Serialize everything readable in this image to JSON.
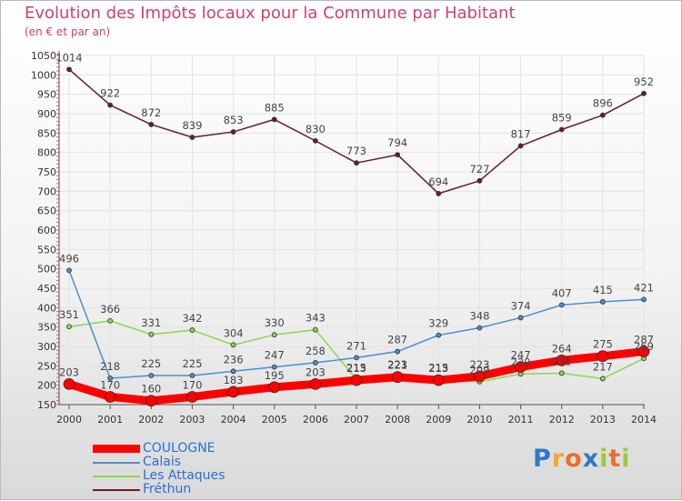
{
  "chart_data": {
    "type": "line",
    "title": "Evolution des Impôts locaux pour la Commune par Habitant",
    "subtitle": "(en € et par an)",
    "x": [
      "2000",
      "2001",
      "2002",
      "2003",
      "2004",
      "2005",
      "2006",
      "2007",
      "2008",
      "2009",
      "2010",
      "2011",
      "2012",
      "2013",
      "2014"
    ],
    "ylim": [
      150,
      1050
    ],
    "yticks": [
      150,
      200,
      250,
      300,
      350,
      400,
      450,
      500,
      550,
      600,
      650,
      700,
      750,
      800,
      850,
      900,
      950,
      1000,
      1050
    ],
    "grid": true,
    "legend_position": "bottom-left",
    "series": [
      {
        "name": "Fréthun",
        "color": "#6b1c24",
        "width": 1.5,
        "marker": 5,
        "values": [
          1014,
          922,
          872,
          839,
          853,
          885,
          830,
          773,
          794,
          694,
          727,
          817,
          859,
          896,
          952
        ]
      },
      {
        "name": "Les Attaques",
        "color": "#8ed64d",
        "width": 1.5,
        "marker": 5,
        "values": [
          351,
          366,
          331,
          342,
          304,
          330,
          343,
          215,
          223,
          215,
          209,
          229,
          231,
          217,
          269
        ]
      },
      {
        "name": "Calais",
        "color": "#4a8fcf",
        "width": 1.5,
        "marker": 5,
        "values": [
          496,
          218,
          225,
          225,
          236,
          247,
          258,
          271,
          287,
          329,
          348,
          374,
          407,
          415,
          421
        ]
      },
      {
        "name": "COULOGNE",
        "color": "#ff0000",
        "width": 9,
        "marker": 12,
        "values": [
          203,
          170,
          160,
          170,
          183,
          195,
          203,
          213,
          221,
          213,
          223,
          247,
          264,
          275,
          287
        ]
      }
    ],
    "legend": [
      "COULOGNE",
      "Calais",
      "Les Attaques",
      "Fréthun"
    ]
  },
  "logo": {
    "letters": [
      "P",
      "r",
      "o",
      "x",
      "i",
      "t",
      "i"
    ],
    "colors": [
      "#2f78c8",
      "#f0a830",
      "#e8702a",
      "#2f78c8",
      "#9acb3c",
      "#e8702a",
      "#9acb3c"
    ]
  }
}
